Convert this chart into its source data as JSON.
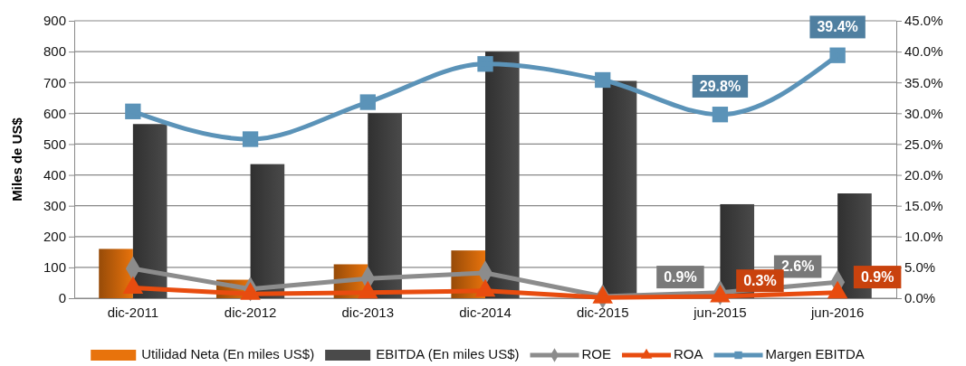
{
  "chart_data": {
    "type": "bar",
    "categories": [
      "dic-2011",
      "dic-2012",
      "dic-2013",
      "dic-2014",
      "dic-2015",
      "jun-2015",
      "jun-2016"
    ],
    "ylabel": "Miles de US$",
    "ylim": [
      0,
      900
    ],
    "yticks": [
      0,
      100,
      200,
      300,
      400,
      500,
      600,
      700,
      800,
      900
    ],
    "y2lim": [
      0,
      45
    ],
    "y2ticks": [
      {
        "value": 0,
        "label": "0.0%"
      },
      {
        "value": 5,
        "label": "5.0%"
      },
      {
        "value": 10,
        "label": "10.0%"
      },
      {
        "value": 15,
        "label": "15.0%"
      },
      {
        "value": 20,
        "label": "20.0%"
      },
      {
        "value": 25,
        "label": "25.0%"
      },
      {
        "value": 30,
        "label": "30.0%"
      },
      {
        "value": 35,
        "label": "35.0%"
      },
      {
        "value": 40,
        "label": "40.0%"
      },
      {
        "value": 45,
        "label": "45.0%"
      }
    ],
    "grid": "y",
    "legend": "bottom",
    "series": [
      {
        "name": "Utilidad Neta (En miles US$)",
        "color": "#e8730c",
        "values": [
          160,
          60,
          110,
          155,
          null,
          null,
          null
        ]
      },
      {
        "name": "EBITDA (En miles US$)",
        "color": "#4a4a4a",
        "values": [
          565,
          435,
          600,
          800,
          705,
          305,
          340
        ]
      },
      {
        "name": "ROE",
        "type": "line",
        "axis": "y2",
        "marker": "diamond",
        "color": "#8c8c8c",
        "values": [
          4.8,
          1.5,
          3.2,
          4.1,
          0.3,
          0.9,
          2.6
        ],
        "value_labels": [
          null,
          null,
          null,
          null,
          null,
          "0.9%",
          "2.6%"
        ]
      },
      {
        "name": "ROA",
        "type": "line",
        "axis": "y2",
        "marker": "triangle",
        "color": "#e84c0f",
        "values": [
          1.7,
          0.7,
          0.9,
          1.2,
          0.1,
          0.3,
          0.9
        ],
        "value_labels": [
          null,
          null,
          null,
          null,
          null,
          "0.3%",
          "0.9%"
        ]
      },
      {
        "name": "Margen EBITDA",
        "type": "line",
        "axis": "y2",
        "marker": "square",
        "color": "#5b93b8",
        "values": [
          30.3,
          25.8,
          31.8,
          38.0,
          35.4,
          29.8,
          39.4
        ],
        "value_labels": [
          null,
          null,
          null,
          null,
          null,
          "29.8%",
          "39.4%"
        ]
      }
    ]
  }
}
